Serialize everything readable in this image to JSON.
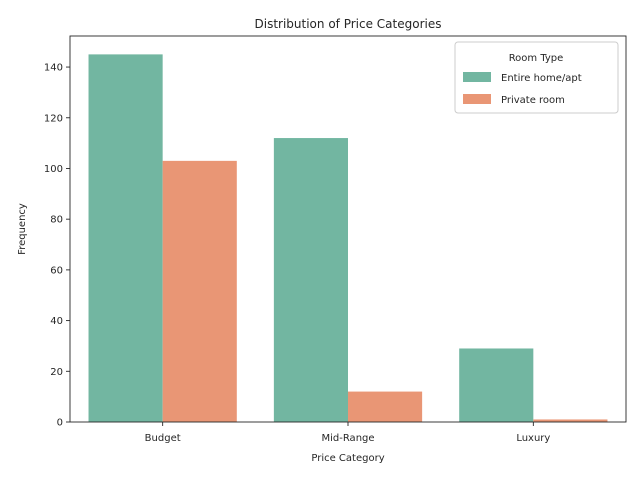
{
  "chart_data": {
    "type": "bar",
    "title": "Distribution of Price Categories",
    "xlabel": "Price Category",
    "ylabel": "Frequency",
    "categories": [
      "Budget",
      "Mid-Range",
      "Luxury"
    ],
    "series": [
      {
        "name": "Entire home/apt",
        "values": [
          145,
          112,
          29
        ],
        "color": "#72b6a1"
      },
      {
        "name": "Private room",
        "values": [
          103,
          12,
          1
        ],
        "color": "#e99675"
      }
    ],
    "ylim": [
      0,
      152.25
    ],
    "yticks": [
      0,
      20,
      40,
      60,
      80,
      100,
      120,
      140
    ],
    "legend": {
      "title": "Room Type",
      "position": "top-right"
    },
    "grid": false
  }
}
